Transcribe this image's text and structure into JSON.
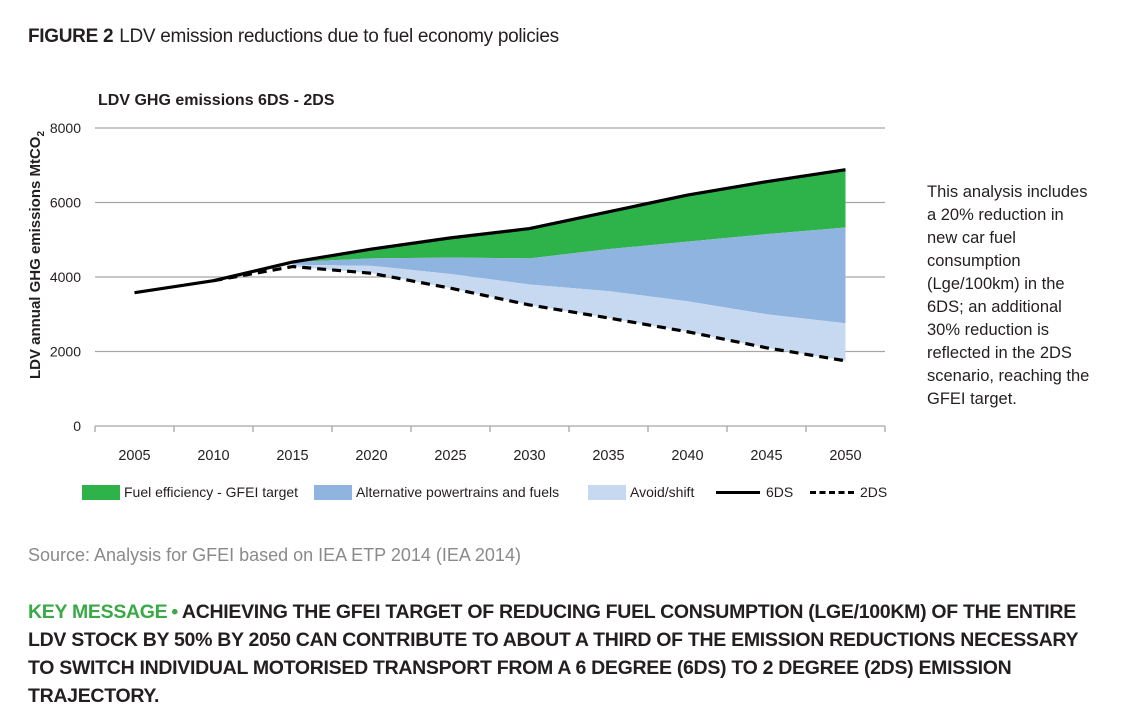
{
  "figure": {
    "number": "FIGURE 2",
    "title": "LDV emission reductions due to fuel economy policies"
  },
  "note": "This analysis includes a 20% reduction in new car fuel consumption (Lge/100km) in the 6DS; an additional 30% reduction is reflected in the 2DS scenario, reaching the GFEI target.",
  "source": "Source: Analysis for GFEI based on IEA ETP 2014 (IEA 2014)",
  "key_message": {
    "lead": "KEY MESSAGE",
    "text": "ACHIEVING THE GFEI TARGET OF REDUCING FUEL CONSUMPTION (LGE/100KM) OF THE ENTIRE LDV STOCK BY 50% BY 2050 CAN CONTRIBUTE TO ABOUT A THIRD OF THE EMISSION REDUCTIONS NECESSARY TO SWITCH INDIVIDUAL MOTORISED TRANSPORT FROM A 6 DEGREE (6DS) TO 2 DEGREE (2DS) EMISSION TRAJECTORY."
  },
  "colors": {
    "fuel_eff": "#2db34a",
    "alt": "#8eb4df",
    "avoid": "#c7d9f0",
    "line": "#000000",
    "grid": "#a6a6a6"
  },
  "chart_data": {
    "type": "area",
    "title": "LDV GHG emissions 6DS - 2DS",
    "ylabel": "LDV annual GHG emissions MtCO",
    "ylabel_sub": "2",
    "ylim": [
      0,
      8000
    ],
    "yticks": [
      0,
      2000,
      4000,
      6000,
      8000
    ],
    "grid": true,
    "legend_position": "bottom",
    "categories": [
      "2005",
      "2010",
      "2015",
      "2020",
      "2025",
      "2030",
      "2035",
      "2040",
      "2045",
      "2050"
    ],
    "series": [
      {
        "name": "6DS",
        "kind": "line",
        "values": [
          3580,
          3900,
          4400,
          4750,
          5050,
          5300,
          5750,
          6200,
          6560,
          6880
        ]
      },
      {
        "name": "Fuel efficiency - GFEI target",
        "kind": "band",
        "upper": [
          null,
          null,
          4400,
          4750,
          5050,
          5300,
          5750,
          6200,
          6560,
          6880
        ],
        "lower": [
          null,
          null,
          4400,
          4500,
          4520,
          4500,
          4750,
          4950,
          5150,
          5330
        ]
      },
      {
        "name": "Alternative powertrains and fuels",
        "kind": "band",
        "upper": [
          null,
          null,
          4400,
          4500,
          4520,
          4500,
          4750,
          4950,
          5150,
          5330
        ],
        "lower": [
          null,
          null,
          4330,
          4300,
          4080,
          3800,
          3620,
          3350,
          3000,
          2760
        ]
      },
      {
        "name": "Avoid/shift",
        "kind": "band",
        "upper": [
          null,
          null,
          4330,
          4300,
          4080,
          3800,
          3620,
          3350,
          3000,
          2760
        ],
        "lower": [
          null,
          null,
          4280,
          4100,
          3700,
          3250,
          2900,
          2530,
          2100,
          1750
        ]
      },
      {
        "name": "2DS",
        "kind": "dashed",
        "values": [
          null,
          3900,
          4280,
          4100,
          3700,
          3250,
          2900,
          2530,
          2100,
          1750
        ]
      }
    ]
  }
}
